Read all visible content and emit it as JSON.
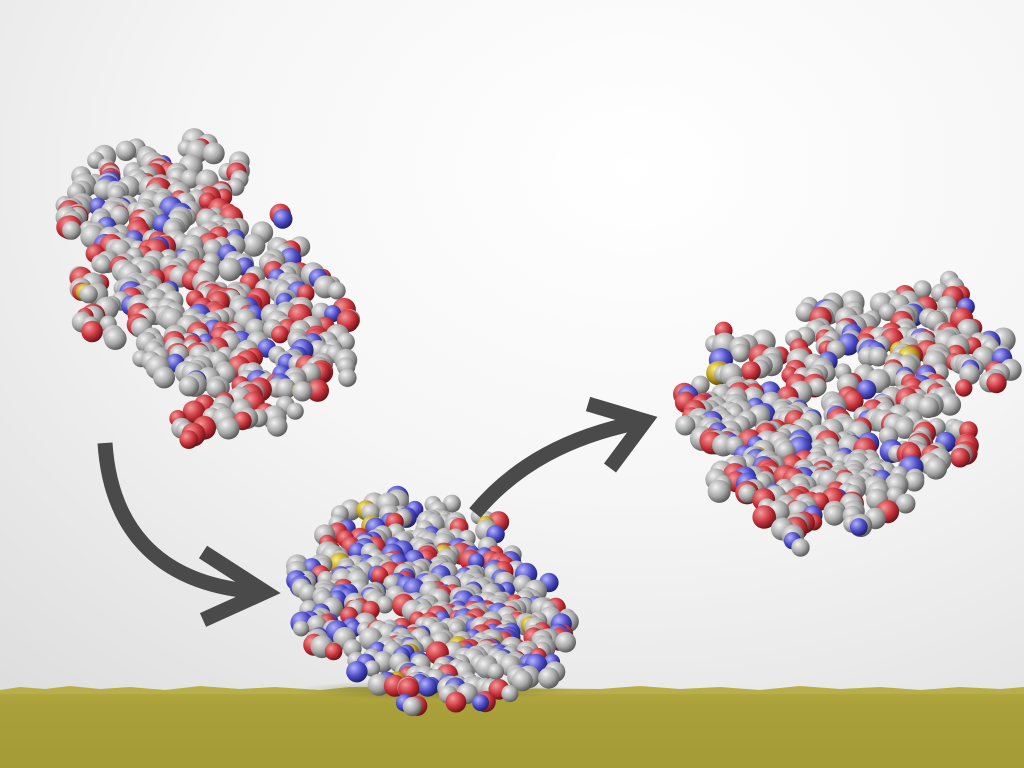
{
  "scene": {
    "description_none": true,
    "colors": {
      "background_top": "#ffffff",
      "background_bottom": "#e4e4e4",
      "surface": "#a9a03a",
      "surface_edge": "#b7ad48",
      "arrow": "#4a4a4a",
      "atom_carbon": "#a7a7a7",
      "atom_oxygen": "#c8323a",
      "atom_nitrogen": "#4a4ac4",
      "atom_sulfur": "#b89a20"
    },
    "proteins": [
      {
        "name": "protein-before-adsorption",
        "state": "free"
      },
      {
        "name": "protein-adsorbed",
        "state": "adsorbed"
      },
      {
        "name": "protein-after-desorption",
        "state": "free"
      }
    ],
    "arrows": [
      {
        "name": "arrow-adsorption"
      },
      {
        "name": "arrow-desorption"
      }
    ]
  }
}
